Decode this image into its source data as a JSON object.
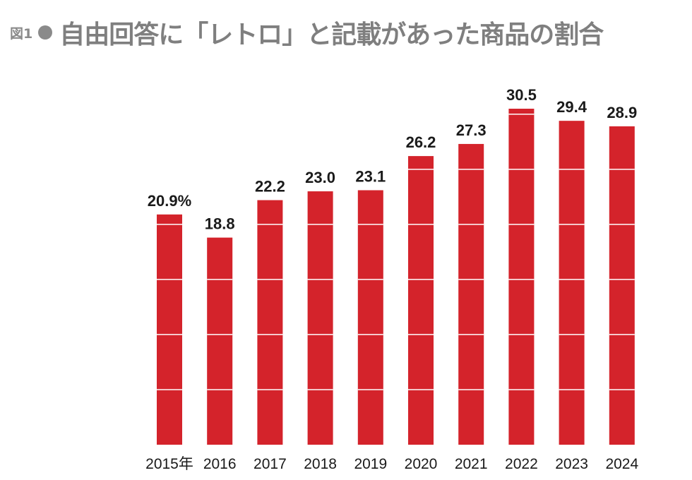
{
  "figure": {
    "label": "図1",
    "title": "自由回答に「レトロ」と記載があった商品の割合"
  },
  "colors": {
    "bar": "#d4232b",
    "gridline": "#ffffff",
    "title": "#7f7f7f"
  },
  "chart_data": {
    "type": "bar",
    "categories": [
      "2015年",
      "2016",
      "2017",
      "2018",
      "2019",
      "2020",
      "2021",
      "2022",
      "2023",
      "2024"
    ],
    "values": [
      20.9,
      18.8,
      22.2,
      23.0,
      23.1,
      26.2,
      27.3,
      30.5,
      29.4,
      28.9
    ],
    "data_labels": [
      "20.9%",
      "18.8",
      "22.2",
      "23.0",
      "23.1",
      "26.2",
      "27.3",
      "30.5",
      "29.4",
      "28.9"
    ],
    "ylim": [
      0,
      30.5
    ],
    "gridlines": [
      5,
      10,
      15,
      20,
      25,
      30
    ],
    "title": "自由回答に「レトロ」と記載があった商品の割合",
    "xlabel": "",
    "ylabel": ""
  }
}
